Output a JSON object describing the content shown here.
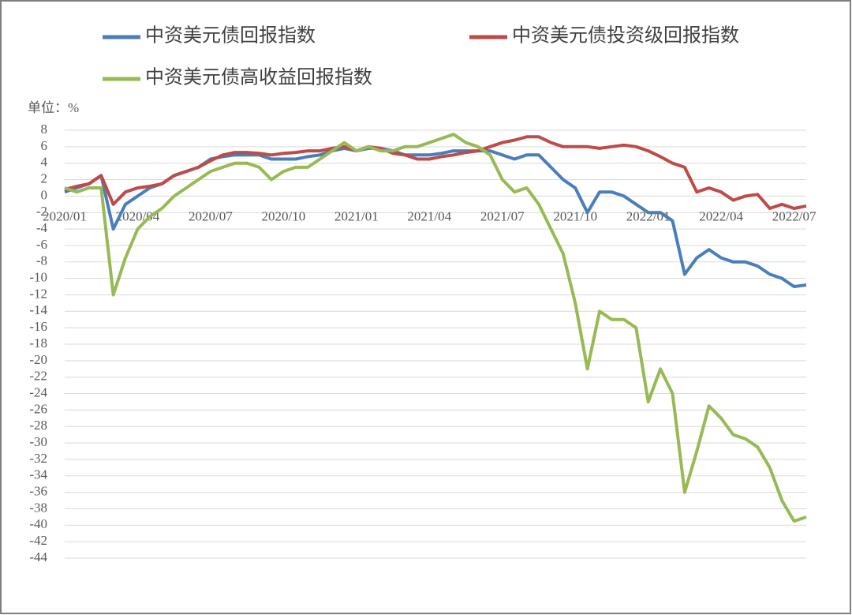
{
  "chart_data": {
    "type": "line",
    "unit_label": "单位：%",
    "legend": "top",
    "grid": true,
    "categories": [
      "2020/01",
      null,
      null,
      null,
      null,
      null,
      "2020/04",
      null,
      null,
      null,
      null,
      null,
      "2020/07",
      null,
      null,
      null,
      null,
      null,
      "2020/10",
      null,
      null,
      null,
      null,
      null,
      "2021/01",
      null,
      null,
      null,
      null,
      null,
      "2021/04",
      null,
      null,
      null,
      null,
      null,
      "2021/07",
      null,
      null,
      null,
      null,
      null,
      "2021/10",
      null,
      null,
      null,
      null,
      null,
      "2022/01",
      null,
      null,
      null,
      null,
      null,
      "2022/04",
      null,
      null,
      null,
      null,
      null,
      "2022/07",
      null
    ],
    "ylim": [
      -44,
      8
    ],
    "yticks": [
      8,
      6,
      4,
      2,
      0,
      -2,
      -4,
      -6,
      -8,
      -10,
      -12,
      -14,
      -16,
      -18,
      -20,
      -22,
      -24,
      -26,
      -28,
      -30,
      -32,
      -34,
      -36,
      -38,
      -40,
      -42,
      -44
    ],
    "series": [
      {
        "name": "中资美元债回报指数",
        "color": "#4a7ebb",
        "values": [
          0.5,
          1,
          1.5,
          2.5,
          -4,
          -1,
          0,
          1,
          1.5,
          2.5,
          3,
          3.5,
          4.5,
          4.8,
          5,
          5,
          5,
          4.5,
          4.5,
          4.5,
          4.8,
          5,
          5.5,
          5.8,
          5.5,
          5.8,
          5.8,
          5.5,
          5,
          5,
          5,
          5.2,
          5.5,
          5.5,
          5.5,
          5.5,
          5,
          4.5,
          5,
          5,
          3.5,
          2,
          1,
          -2,
          0.5,
          0.5,
          0,
          -1,
          -2,
          -2,
          -3,
          -9.5,
          -7.5,
          -6.5,
          -7.5,
          -8,
          -8,
          -8.5,
          -9.5,
          -10,
          -11,
          -10.8
        ]
      },
      {
        "name": "中资美元债投资级回报指数",
        "color": "#be4b48",
        "values": [
          0.8,
          1.2,
          1.5,
          2.5,
          -1,
          0.5,
          1,
          1.2,
          1.5,
          2.5,
          3,
          3.5,
          4.3,
          5,
          5.3,
          5.3,
          5.2,
          5,
          5.2,
          5.3,
          5.5,
          5.5,
          5.8,
          6,
          5.5,
          6,
          5.8,
          5.2,
          5,
          4.5,
          4.5,
          4.8,
          5,
          5.3,
          5.5,
          6,
          6.5,
          6.8,
          7.2,
          7.2,
          6.5,
          6,
          6,
          6,
          5.8,
          6,
          6.2,
          6,
          5.5,
          4.8,
          4,
          3.5,
          0.5,
          1,
          0.5,
          -0.5,
          0,
          0.2,
          -1.5,
          -1,
          -1.5,
          -1.2
        ]
      },
      {
        "name": "中资美元债高收益回报指数",
        "color": "#98b954",
        "values": [
          1,
          0.5,
          1,
          1,
          -12,
          -7.5,
          -4,
          -2.5,
          -1.5,
          0,
          1,
          2,
          3,
          3.5,
          4,
          4,
          3.5,
          2,
          3,
          3.5,
          3.5,
          4.5,
          5.5,
          6.5,
          5.5,
          6,
          5.5,
          5.5,
          6,
          6,
          6.5,
          7,
          7.5,
          6.5,
          6,
          5,
          2,
          0.5,
          1,
          -1,
          -4,
          -7,
          -13,
          -21,
          -14,
          -15,
          -15,
          -16,
          -25,
          -21,
          -24,
          -36,
          -31,
          -25.5,
          -27,
          -29,
          -29.5,
          -30.5,
          -33,
          -37,
          -39.5,
          -39
        ]
      }
    ]
  }
}
